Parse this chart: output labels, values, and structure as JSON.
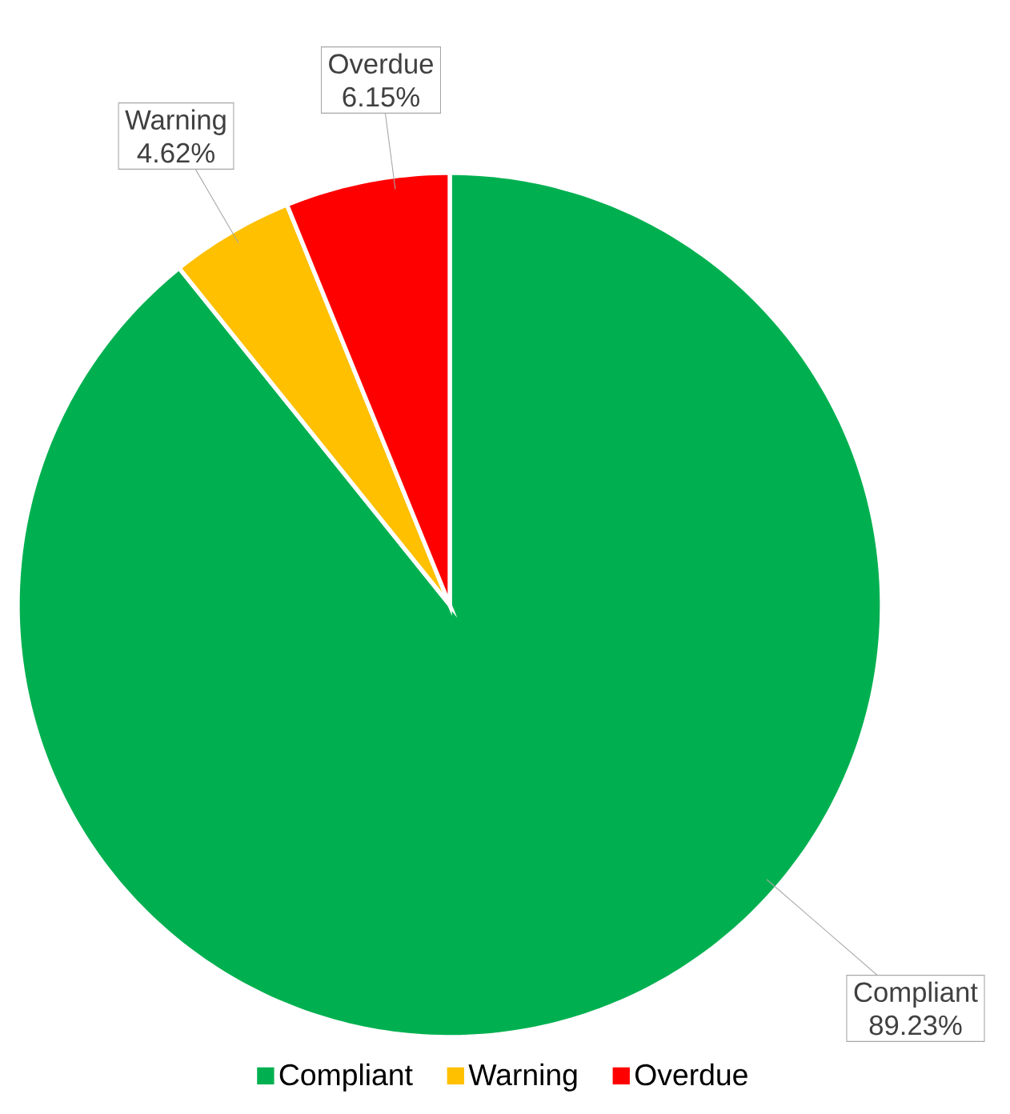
{
  "chart_data": {
    "type": "pie",
    "categories": [
      "Compliant",
      "Warning",
      "Overdue"
    ],
    "values": [
      89.23,
      4.62,
      6.15
    ],
    "value_labels": [
      "89.23%",
      "4.62%",
      "6.15%"
    ],
    "colors": [
      "#00b050",
      "#ffc000",
      "#ff0000"
    ],
    "legend": "bottom"
  }
}
